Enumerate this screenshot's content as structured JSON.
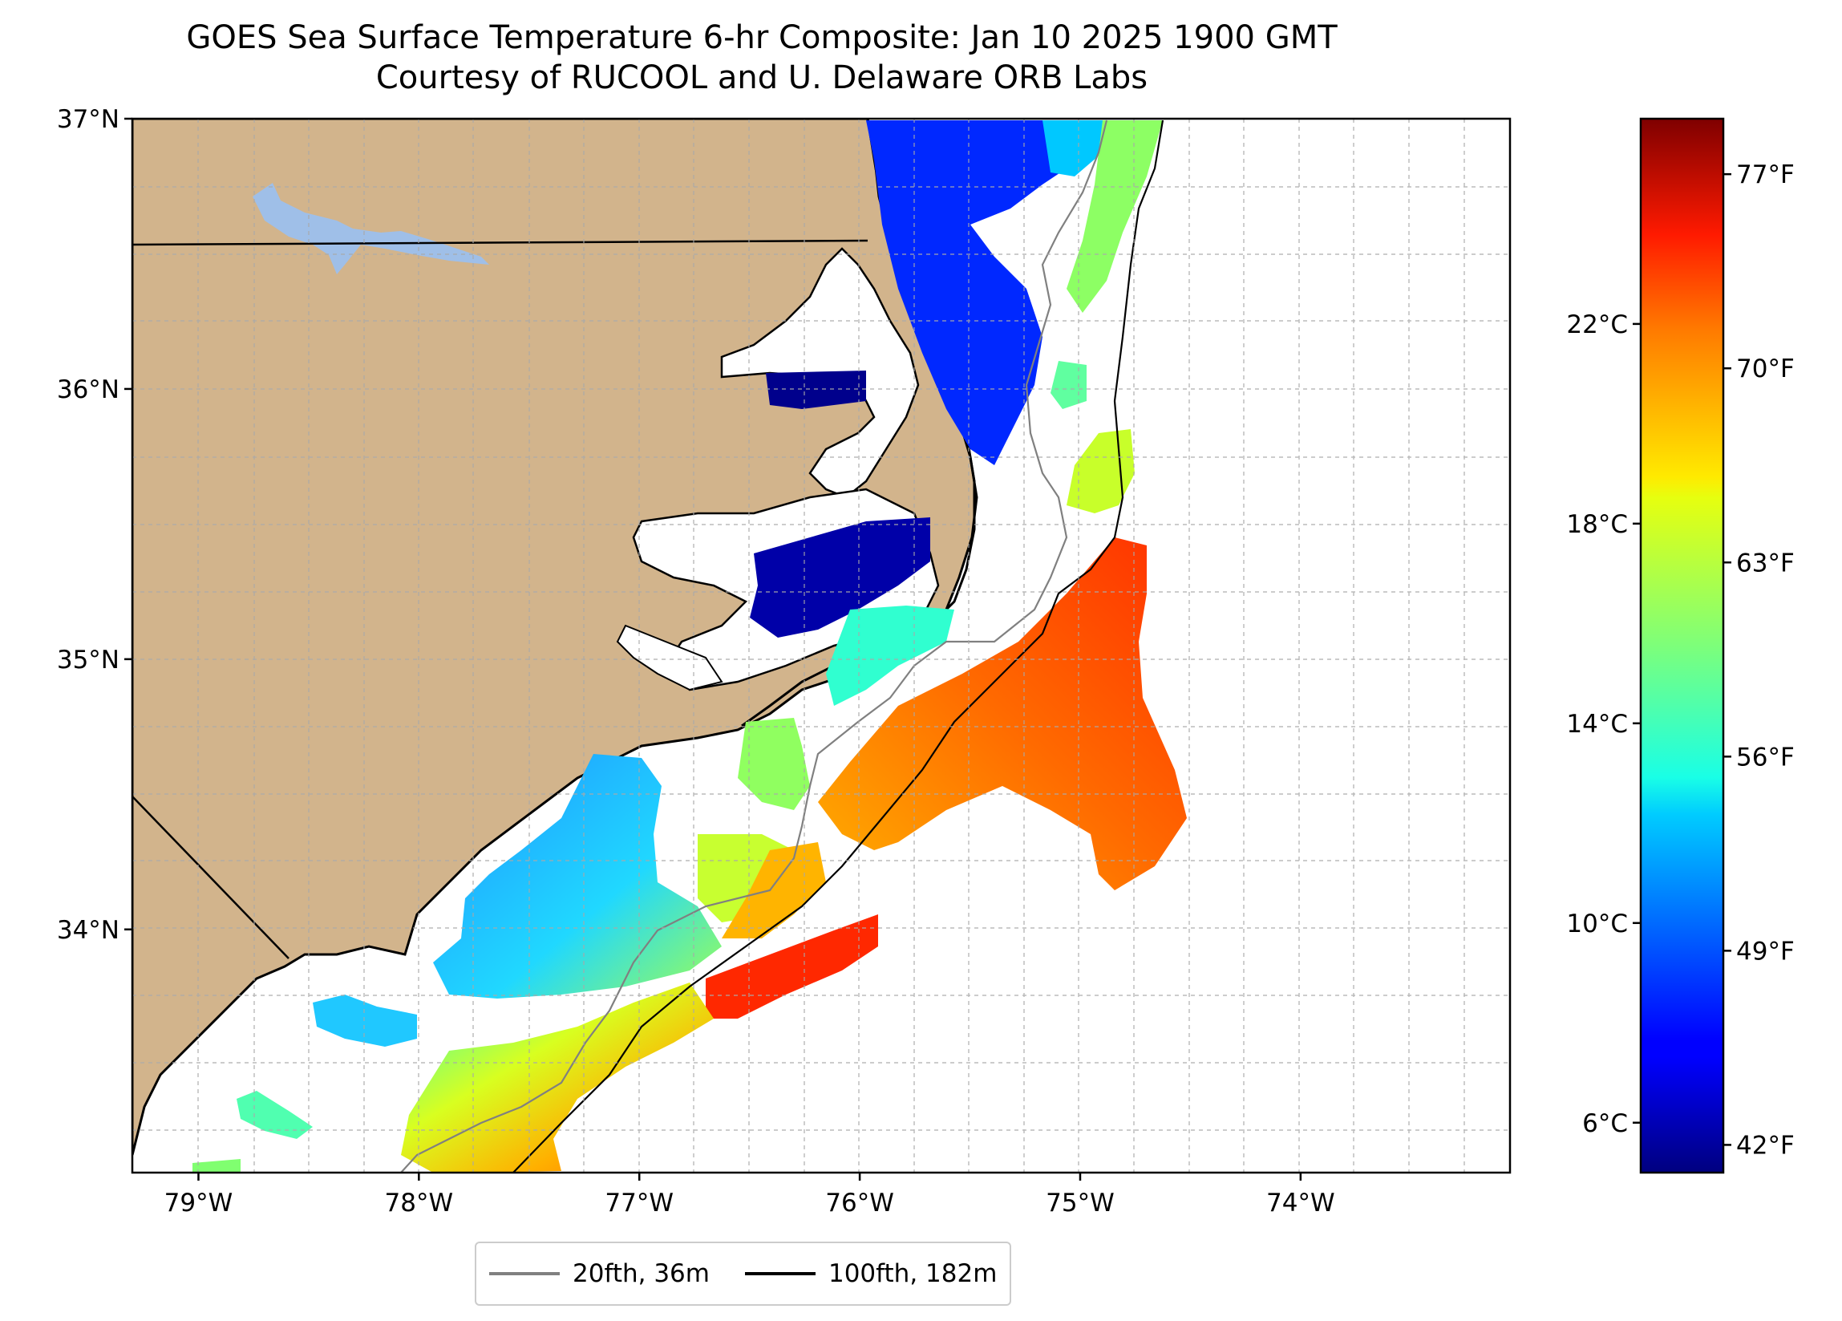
{
  "title": {
    "line1": "GOES Sea Surface Temperature 6-hr Composite: Jan 10 2025 1900 GMT",
    "line2": "Courtesy of RUCOOL and U. Delaware ORB Labs"
  },
  "map": {
    "lon_range": [
      -79.3,
      -73.05
    ],
    "lat_range": [
      33.1,
      37.0
    ],
    "lat_ticks": [
      {
        "v": 37,
        "label": "37°N"
      },
      {
        "v": 36,
        "label": "36°N"
      },
      {
        "v": 35,
        "label": "35°N"
      },
      {
        "v": 34,
        "label": "34°N"
      }
    ],
    "lon_ticks": [
      {
        "v": -79,
        "label": "79°W"
      },
      {
        "v": -78,
        "label": "78°W"
      },
      {
        "v": -77,
        "label": "77°W"
      },
      {
        "v": -76,
        "label": "76°W"
      },
      {
        "v": -75,
        "label": "75°W"
      },
      {
        "v": -74,
        "label": "74°W"
      }
    ],
    "grid": true,
    "colors": {
      "land": "#d2b48c",
      "lake": "#9fbfe8",
      "ocean": "#ffffff"
    }
  },
  "colorbar": {
    "celsius_ticks": [
      {
        "v": 6,
        "label": "6°C"
      },
      {
        "v": 10,
        "label": "10°C"
      },
      {
        "v": 14,
        "label": "14°C"
      },
      {
        "v": 18,
        "label": "18°C"
      },
      {
        "v": 22,
        "label": "22°C"
      }
    ],
    "fahrenheit_ticks": [
      {
        "v": 42,
        "label": "42°F"
      },
      {
        "v": 49,
        "label": "49°F"
      },
      {
        "v": 56,
        "label": "56°F"
      },
      {
        "v": 63,
        "label": "63°F"
      },
      {
        "v": 70,
        "label": "70°F"
      },
      {
        "v": 77,
        "label": "77°F"
      }
    ],
    "range_f": [
      41,
      79
    ],
    "colormap": "jet"
  },
  "legend": {
    "placement": "bottom-center",
    "items": [
      {
        "label": "20fth, 36m",
        "color": "#808080"
      },
      {
        "label": "100fth, 182m",
        "color": "#000000"
      }
    ]
  }
}
